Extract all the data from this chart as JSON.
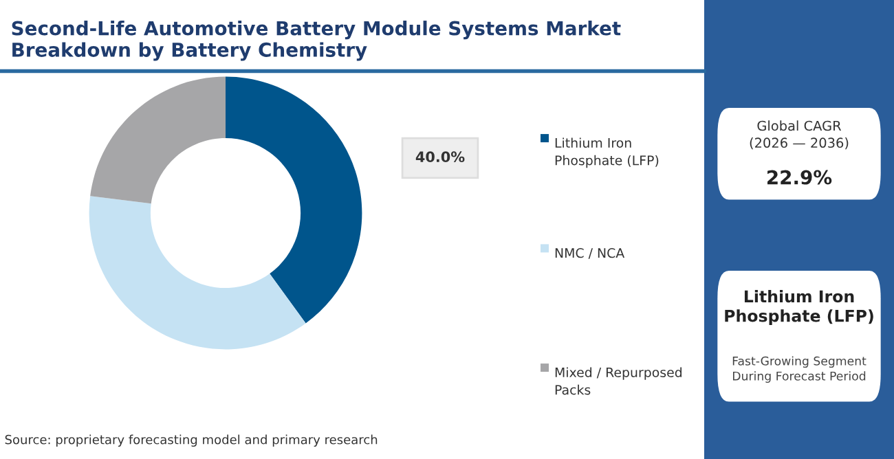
{
  "chart_data": {
    "type": "donut",
    "title": "Second-Life Automotive Battery Module Systems Market Breakdown by Battery Chemistry",
    "categories": [
      "Lithium Iron Phosphate (LFP)",
      "NMC / NCA",
      "Mixed / Repurposed Packs"
    ],
    "values": [
      40.0,
      37,
      23
    ],
    "colors": [
      "#00558c",
      "#c5e2f3",
      "#a6a6a8"
    ],
    "value_labels": [
      "40.0%",
      null,
      null
    ],
    "legend": "right",
    "annotations": [
      "Global CAGR\n(2026 — 2036)",
      "22.9%",
      "Lithium Iron\nPhosphate (LFP)",
      "Fast-Growing Segment\nDuring Forecast Period",
      "Source: proprietary forecasting model and primary research"
    ]
  }
}
